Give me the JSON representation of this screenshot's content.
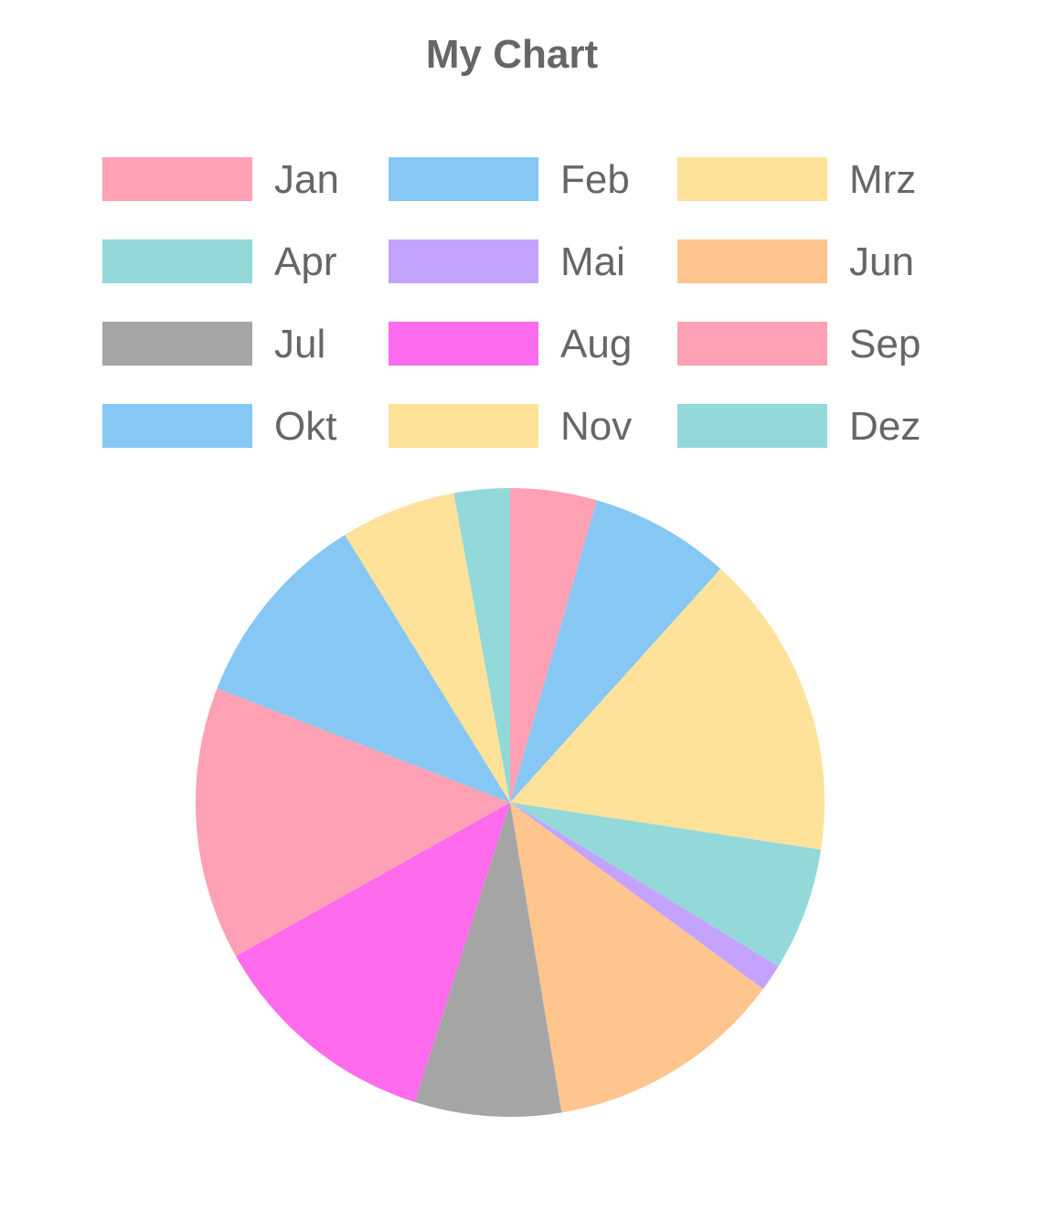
{
  "chart_data": {
    "type": "pie",
    "title": "My Chart",
    "legend_position": "top",
    "categories": [
      "Jan",
      "Feb",
      "Mrz",
      "Apr",
      "Mai",
      "Jun",
      "Jul",
      "Aug",
      "Sep",
      "Okt",
      "Nov",
      "Dez"
    ],
    "values": [
      4.5,
      7.3,
      15.9,
      6.4,
      1.4,
      12.4,
      7.6,
      12.1,
      14.2,
      10.4,
      6.0,
      2.9
    ],
    "colors": [
      "#ffa1b5",
      "#86c7f3",
      "#ffe29a",
      "#93d9d9",
      "#c4a3ff",
      "#ffc58f",
      "#a5a5a5",
      "#ff6bed",
      "#ffa1b5",
      "#86c7f3",
      "#ffe29a",
      "#93d9d9"
    ]
  }
}
